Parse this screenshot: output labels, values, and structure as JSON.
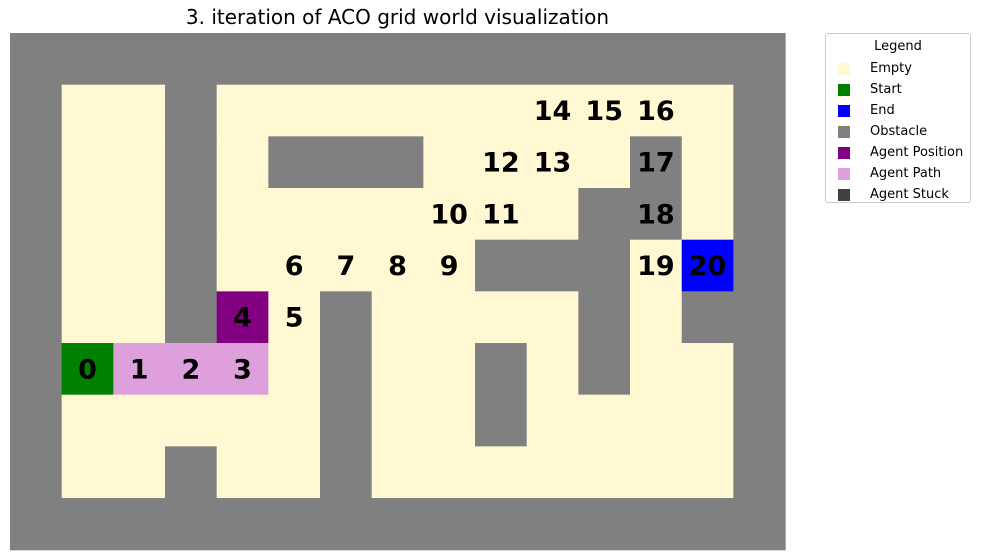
{
  "chart_data": {
    "type": "heatmap",
    "title": "3. iteration of ACO grid world visualization",
    "grid_size": {
      "rows": 10,
      "cols": 15
    },
    "cell_types": [
      "Empty",
      "Start",
      "End",
      "Obstacle",
      "Agent Position",
      "Agent Path",
      "Agent Stuck"
    ],
    "colors": {
      "Empty": "#fff8d2",
      "Start": "#008000",
      "End": "#0000ff",
      "Obstacle": "#808080",
      "Agent Position": "#800080",
      "Agent Path": "#dda0dd",
      "Agent Stuck": "#404040"
    },
    "grid": [
      "OOOOOOOOOOOOOOO",
      "OEEOEEEEEEEEEEO",
      "OEEOEOOOEEEEOEO",
      "OEEOEEEEEEEOOEO",
      "OEEOEEEEEOOOEOO",
      "OEEOPEOEEEEOEOO",
      "OSAAAEOEEOEOEEO",
      "OEEEEEOEEOEEEEO",
      "OEEOEEOEEEEEEEO",
      "OOOOOOOOOOOOOOO"
    ],
    "grid_legend": {
      "O": "Obstacle",
      "E": "Empty",
      "S": "Start",
      "A": "Agent Path",
      "P": "Agent Position"
    },
    "end_cell": {
      "row": 4,
      "col": 13
    },
    "step_labels": [
      {
        "text": "0",
        "row": 6,
        "col": 1
      },
      {
        "text": "1",
        "row": 6,
        "col": 2
      },
      {
        "text": "2",
        "row": 6,
        "col": 3
      },
      {
        "text": "3",
        "row": 6,
        "col": 4
      },
      {
        "text": "4",
        "row": 5,
        "col": 4
      },
      {
        "text": "5",
        "row": 5,
        "col": 5
      },
      {
        "text": "6",
        "row": 4,
        "col": 5
      },
      {
        "text": "7",
        "row": 4,
        "col": 6
      },
      {
        "text": "8",
        "row": 4,
        "col": 7
      },
      {
        "text": "9",
        "row": 4,
        "col": 8
      },
      {
        "text": "10",
        "row": 3,
        "col": 8
      },
      {
        "text": "11",
        "row": 3,
        "col": 9
      },
      {
        "text": "12",
        "row": 2,
        "col": 9
      },
      {
        "text": "13",
        "row": 2,
        "col": 10
      },
      {
        "text": "14",
        "row": 1,
        "col": 10
      },
      {
        "text": "15",
        "row": 1,
        "col": 11
      },
      {
        "text": "16",
        "row": 1,
        "col": 12
      },
      {
        "text": "17",
        "row": 2,
        "col": 12
      },
      {
        "text": "18",
        "row": 3,
        "col": 12
      },
      {
        "text": "19",
        "row": 4,
        "col": 12
      },
      {
        "text": "20",
        "row": 4,
        "col": 13
      }
    ],
    "legend": {
      "title": "Legend",
      "placement": "outside-right-top",
      "entries": [
        "Empty",
        "Start",
        "End",
        "Obstacle",
        "Agent Position",
        "Agent Path",
        "Agent Stuck"
      ]
    }
  }
}
